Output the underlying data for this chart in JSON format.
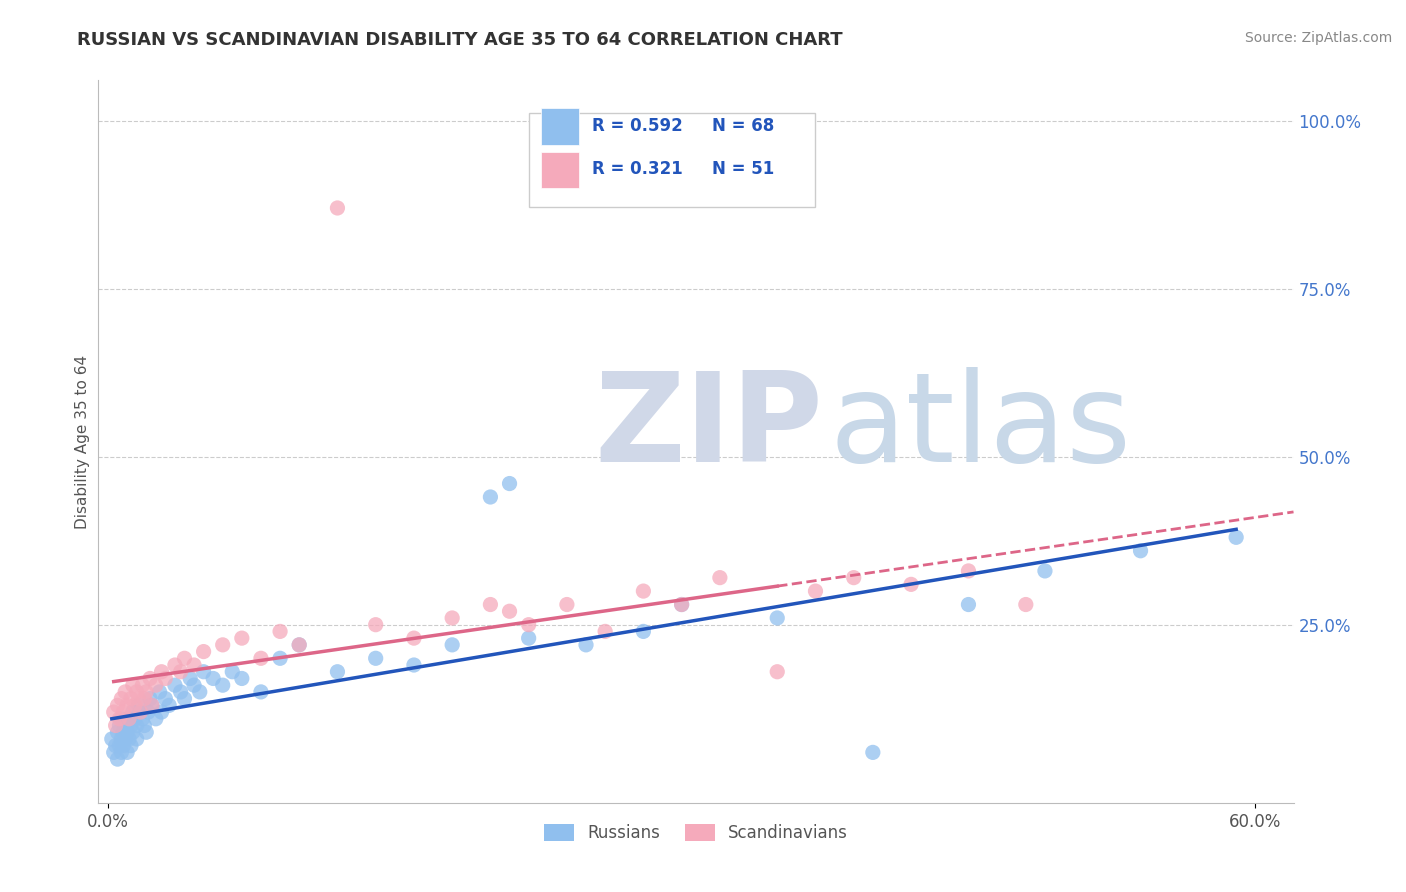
{
  "title": "RUSSIAN VS SCANDINAVIAN DISABILITY AGE 35 TO 64 CORRELATION CHART",
  "source": "Source: ZipAtlas.com",
  "ylabel": "Disability Age 35 to 64",
  "xlim": [
    -0.005,
    0.62
  ],
  "ylim": [
    -0.015,
    1.06
  ],
  "xtick_positions": [
    0.0,
    0.6
  ],
  "xticklabels": [
    "0.0%",
    "60.0%"
  ],
  "ytick_positions": [
    0.25,
    0.5,
    0.75,
    1.0
  ],
  "yticklabels": [
    "25.0%",
    "50.0%",
    "75.0%",
    "100.0%"
  ],
  "russian_R": 0.592,
  "russian_N": 68,
  "scandinavian_R": 0.321,
  "scandinavian_N": 51,
  "russian_dot_color": "#90BFEE",
  "scandinavian_dot_color": "#F5AABB",
  "russian_line_color": "#2255BB",
  "scandinavian_line_color": "#DD6688",
  "grid_color": "#CCCCCC",
  "grid_linestyle": "--",
  "bg_color": "#FFFFFF",
  "watermark_zip": "ZIP",
  "watermark_atlas": "atlas",
  "watermark_color_zip": "#D0D8E8",
  "watermark_color_atlas": "#C8D8E8",
  "title_color": "#333333",
  "source_color": "#888888",
  "legend_text_color": "#2255BB",
  "legend_label_color": "#333333",
  "axis_tick_color": "#4477CC",
  "russian_scatter_x": [
    0.002,
    0.003,
    0.004,
    0.005,
    0.005,
    0.006,
    0.006,
    0.007,
    0.007,
    0.007,
    0.008,
    0.008,
    0.009,
    0.009,
    0.01,
    0.01,
    0.011,
    0.011,
    0.012,
    0.012,
    0.013,
    0.013,
    0.014,
    0.015,
    0.015,
    0.016,
    0.017,
    0.018,
    0.019,
    0.02,
    0.021,
    0.022,
    0.023,
    0.025,
    0.027,
    0.028,
    0.03,
    0.032,
    0.035,
    0.038,
    0.04,
    0.043,
    0.045,
    0.048,
    0.05,
    0.055,
    0.06,
    0.065,
    0.07,
    0.08,
    0.09,
    0.1,
    0.12,
    0.14,
    0.16,
    0.18,
    0.2,
    0.21,
    0.22,
    0.25,
    0.28,
    0.3,
    0.35,
    0.4,
    0.45,
    0.49,
    0.54,
    0.59
  ],
  "russian_scatter_y": [
    0.08,
    0.06,
    0.07,
    0.09,
    0.05,
    0.1,
    0.07,
    0.08,
    0.06,
    0.11,
    0.09,
    0.07,
    0.1,
    0.08,
    0.09,
    0.06,
    0.11,
    0.08,
    0.1,
    0.07,
    0.12,
    0.09,
    0.11,
    0.1,
    0.08,
    0.13,
    0.12,
    0.11,
    0.1,
    0.09,
    0.12,
    0.14,
    0.13,
    0.11,
    0.15,
    0.12,
    0.14,
    0.13,
    0.16,
    0.15,
    0.14,
    0.17,
    0.16,
    0.15,
    0.18,
    0.17,
    0.16,
    0.18,
    0.17,
    0.15,
    0.2,
    0.22,
    0.18,
    0.2,
    0.19,
    0.22,
    0.44,
    0.46,
    0.23,
    0.22,
    0.24,
    0.28,
    0.26,
    0.06,
    0.28,
    0.33,
    0.36,
    0.38
  ],
  "scandinavian_scatter_x": [
    0.003,
    0.004,
    0.005,
    0.006,
    0.007,
    0.008,
    0.009,
    0.01,
    0.011,
    0.012,
    0.013,
    0.014,
    0.015,
    0.016,
    0.017,
    0.018,
    0.019,
    0.02,
    0.022,
    0.023,
    0.025,
    0.028,
    0.03,
    0.035,
    0.038,
    0.04,
    0.045,
    0.05,
    0.06,
    0.07,
    0.08,
    0.09,
    0.1,
    0.12,
    0.14,
    0.16,
    0.18,
    0.2,
    0.21,
    0.22,
    0.24,
    0.26,
    0.28,
    0.3,
    0.32,
    0.35,
    0.37,
    0.39,
    0.42,
    0.45,
    0.48
  ],
  "scandinavian_scatter_y": [
    0.12,
    0.1,
    0.13,
    0.11,
    0.14,
    0.12,
    0.15,
    0.13,
    0.11,
    0.14,
    0.16,
    0.13,
    0.15,
    0.14,
    0.12,
    0.16,
    0.14,
    0.15,
    0.17,
    0.13,
    0.16,
    0.18,
    0.17,
    0.19,
    0.18,
    0.2,
    0.19,
    0.21,
    0.22,
    0.23,
    0.2,
    0.24,
    0.22,
    0.87,
    0.25,
    0.23,
    0.26,
    0.28,
    0.27,
    0.25,
    0.28,
    0.24,
    0.3,
    0.28,
    0.32,
    0.18,
    0.3,
    0.32,
    0.31,
    0.33,
    0.28
  ],
  "scandinavian_line_xend": 0.5,
  "scandinavian_dashed_xstart": 0.35,
  "scandinavian_dashed_xend": 0.6
}
